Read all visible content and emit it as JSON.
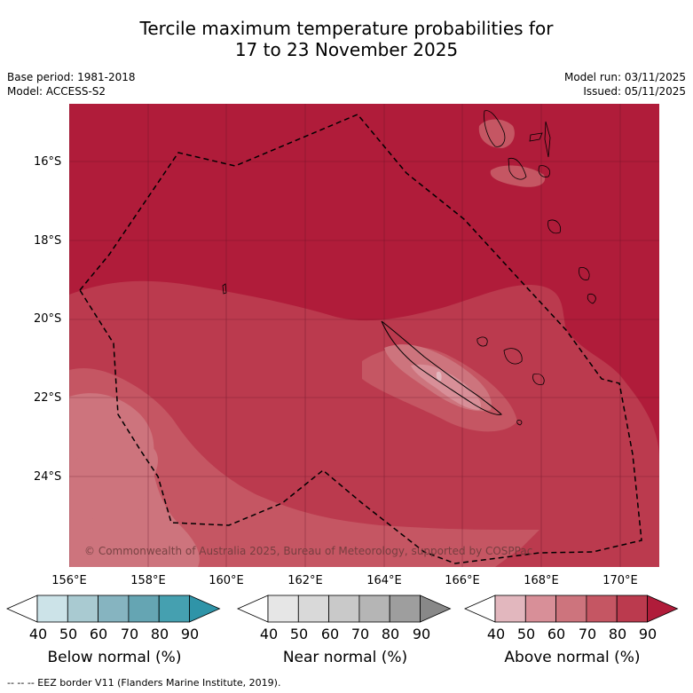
{
  "title_line1": "Tercile maximum temperature probabilities for",
  "title_line2": "17 to 23 November 2025",
  "base_period": "Base period: 1981-2018",
  "model": "Model: ACCESS-S2",
  "model_run": "Model run: 03/11/2025",
  "issued": "Issued: 05/11/2025",
  "lat_labels": [
    "16°S",
    "18°S",
    "20°S",
    "22°S",
    "24°S"
  ],
  "lon_labels": [
    "156°E",
    "158°E",
    "160°E",
    "162°E",
    "164°E",
    "166°E",
    "168°E",
    "170°E"
  ],
  "copyright": "© Commonwealth of Australia 2025, Bureau of Meteorology, supported by COSPPac",
  "footer": "--  --  -- EEZ border V11 (Flanders Marine Institute, 2019).",
  "colorbars": [
    {
      "title": "Below normal (%)",
      "ticks": [
        "40",
        "50",
        "60",
        "70",
        "80",
        "90"
      ],
      "colors": [
        "#ffffff",
        "#cce3e8",
        "#a9cad1",
        "#86b4c0",
        "#65a5b3",
        "#45a0b0",
        "#2f94a8"
      ]
    },
    {
      "title": "Near normal (%)",
      "ticks": [
        "40",
        "50",
        "60",
        "70",
        "80",
        "90"
      ],
      "colors": [
        "#ffffff",
        "#e6e6e6",
        "#d9d9d9",
        "#c9c9c9",
        "#b5b5b5",
        "#9e9e9e",
        "#888888"
      ]
    },
    {
      "title": "Above normal (%)",
      "ticks": [
        "40",
        "50",
        "60",
        "70",
        "80",
        "90"
      ],
      "colors": [
        "#ffffff",
        "#e2b7be",
        "#d88f98",
        "#cd747d",
        "#c55663",
        "#bb3a4e",
        "#b01c3a"
      ]
    }
  ],
  "region_colors": {
    "level90": "#b01c3a",
    "level80": "#bb3a4e",
    "level70": "#c55663",
    "level60": "#cd747d",
    "level50": "#d88f98"
  }
}
